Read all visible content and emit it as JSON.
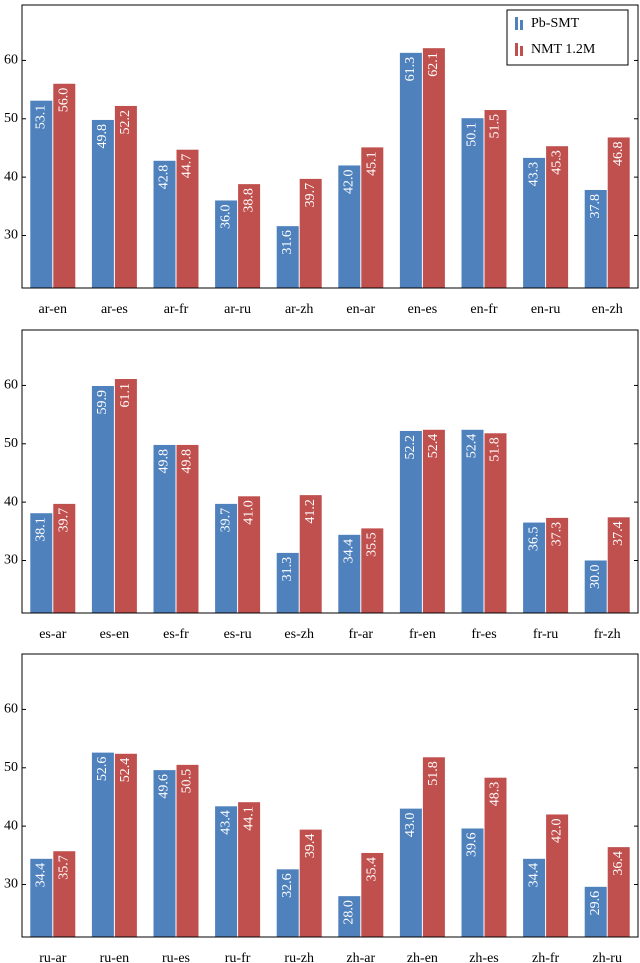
{
  "chart_data": [
    {
      "type": "bar",
      "categories": [
        "ar-en",
        "ar-es",
        "ar-fr",
        "ar-ru",
        "ar-zh",
        "en-ar",
        "en-es",
        "en-fr",
        "en-ru",
        "en-zh"
      ],
      "series": [
        {
          "name": "Pb-SMT",
          "color": "#4f81bd",
          "values": [
            53.1,
            49.8,
            42.8,
            36.0,
            31.6,
            42.0,
            61.3,
            50.1,
            43.3,
            37.8
          ],
          "value_labels": [
            "53.1",
            "49.8",
            "42.8",
            "36.0",
            "31.6",
            "42.0",
            "61.3",
            "50.1",
            "43.3",
            "37.8"
          ]
        },
        {
          "name": "NMT 1.2M",
          "color": "#c0504d",
          "values": [
            56.0,
            52.2,
            44.7,
            38.8,
            39.7,
            45.1,
            62.1,
            51.5,
            45.3,
            46.8
          ],
          "value_labels": [
            "56.0",
            "52.2",
            "44.7",
            "38.8",
            "39.7",
            "45.1",
            "62.1",
            "51.5",
            "45.3",
            "46.8"
          ]
        }
      ],
      "ylim": [
        21,
        69.5
      ],
      "yticks": [
        30,
        40,
        50,
        60
      ],
      "grid": false,
      "legend": "upper right"
    },
    {
      "type": "bar",
      "categories": [
        "es-ar",
        "es-en",
        "es-fr",
        "es-ru",
        "es-zh",
        "fr-ar",
        "fr-en",
        "fr-es",
        "fr-ru",
        "fr-zh"
      ],
      "series": [
        {
          "color": "#4f81bd",
          "values": [
            38.1,
            59.9,
            49.8,
            39.7,
            31.3,
            34.4,
            52.2,
            52.4,
            36.5,
            30.0
          ],
          "value_labels": [
            "38.1",
            "59.9",
            "49.8",
            "39.7",
            "31.3",
            "34.4",
            "52.2",
            "52.4",
            "36.5",
            "30.0"
          ]
        },
        {
          "color": "#c0504d",
          "values": [
            39.7,
            61.1,
            49.8,
            41.0,
            41.2,
            35.5,
            52.4,
            51.8,
            37.3,
            37.4
          ],
          "value_labels": [
            "39.7",
            "61.1",
            "49.8",
            "41.0",
            "41.2",
            "35.5",
            "52.4",
            "51.8",
            "37.3",
            "37.4"
          ]
        }
      ],
      "ylim": [
        21,
        69.5
      ],
      "yticks": [
        30,
        40,
        50,
        60
      ],
      "grid": false
    },
    {
      "type": "bar",
      "categories": [
        "ru-ar",
        "ru-en",
        "ru-es",
        "ru-fr",
        "ru-zh",
        "zh-ar",
        "zh-en",
        "zh-es",
        "zh-fr",
        "zh-ru"
      ],
      "series": [
        {
          "color": "#4f81bd",
          "values": [
            34.4,
            52.6,
            49.6,
            43.4,
            32.6,
            28.0,
            43.0,
            39.6,
            34.4,
            29.6
          ],
          "value_labels": [
            "34.4",
            "52.6",
            "49.6",
            "43.4",
            "32.6",
            "28.0",
            "43.0",
            "39.6",
            "34.4",
            "29.6"
          ]
        },
        {
          "color": "#c0504d",
          "values": [
            35.7,
            52.4,
            50.5,
            44.1,
            39.4,
            35.4,
            51.8,
            48.3,
            42.0,
            36.4
          ],
          "value_labels": [
            "35.7",
            "52.4",
            "50.5",
            "44.1",
            "39.4",
            "35.4",
            "51.8",
            "48.3",
            "42.0",
            "36.4"
          ]
        }
      ],
      "ylim": [
        21,
        69.5
      ],
      "yticks": [
        30,
        40,
        50,
        60
      ],
      "grid": false
    }
  ]
}
